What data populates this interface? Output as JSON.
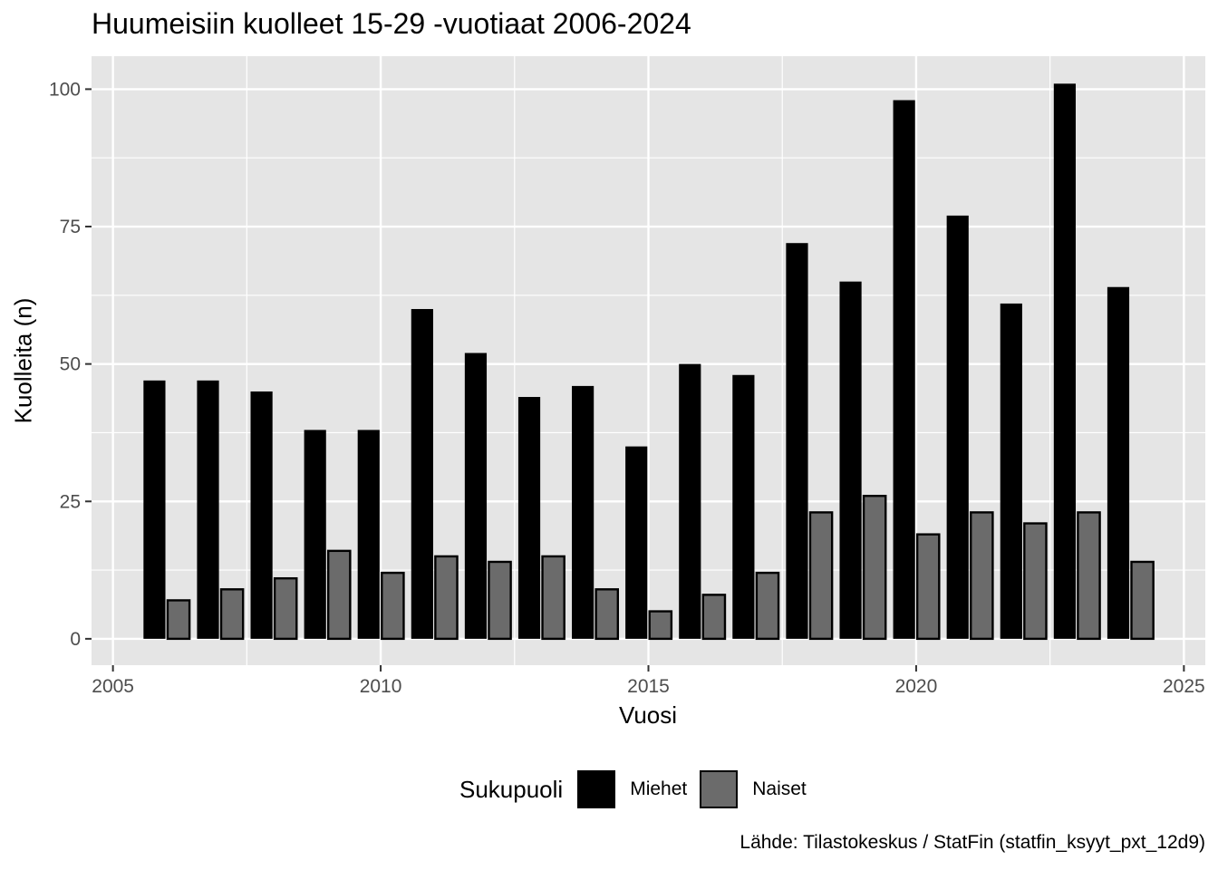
{
  "chart_data": {
    "type": "bar",
    "title": "Huumeisiin kuolleet 15-29 -vuotiaat 2006-2024",
    "xlabel": "Vuosi",
    "ylabel": "Kuolleita (n)",
    "caption": "Lähde: Tilastokeskus / StatFin (statfin_ksyyt_pxt_12d9)",
    "x": [
      2006,
      2007,
      2008,
      2009,
      2010,
      2011,
      2012,
      2013,
      2014,
      2015,
      2016,
      2017,
      2018,
      2019,
      2020,
      2021,
      2022,
      2023,
      2024
    ],
    "series": [
      {
        "name": "Miehet",
        "color": "#000000",
        "values": [
          47,
          47,
          45,
          38,
          38,
          60,
          52,
          44,
          46,
          35,
          50,
          48,
          72,
          65,
          98,
          77,
          61,
          101,
          64
        ]
      },
      {
        "name": "Naiset",
        "color": "#6b6b6b",
        "values": [
          7,
          9,
          11,
          16,
          12,
          15,
          14,
          15,
          9,
          5,
          8,
          12,
          23,
          26,
          19,
          23,
          21,
          23,
          14
        ]
      }
    ],
    "xlim": [
      2004.6,
      2025.4
    ],
    "ylim": [
      -4.8,
      106
    ],
    "xticks": [
      2005,
      2010,
      2015,
      2020,
      2025
    ],
    "xtick_labels": [
      "2005",
      "2010",
      "2015",
      "2020",
      "2025"
    ],
    "yticks": [
      0,
      25,
      50,
      75,
      100
    ],
    "ytick_labels": [
      "0",
      "25",
      "50",
      "75",
      "100"
    ],
    "grid": true,
    "legend_title": "Sukupuoli",
    "legend_position": "bottom",
    "panel_color": "#e5e5e5",
    "grid_color": "#ffffff"
  }
}
